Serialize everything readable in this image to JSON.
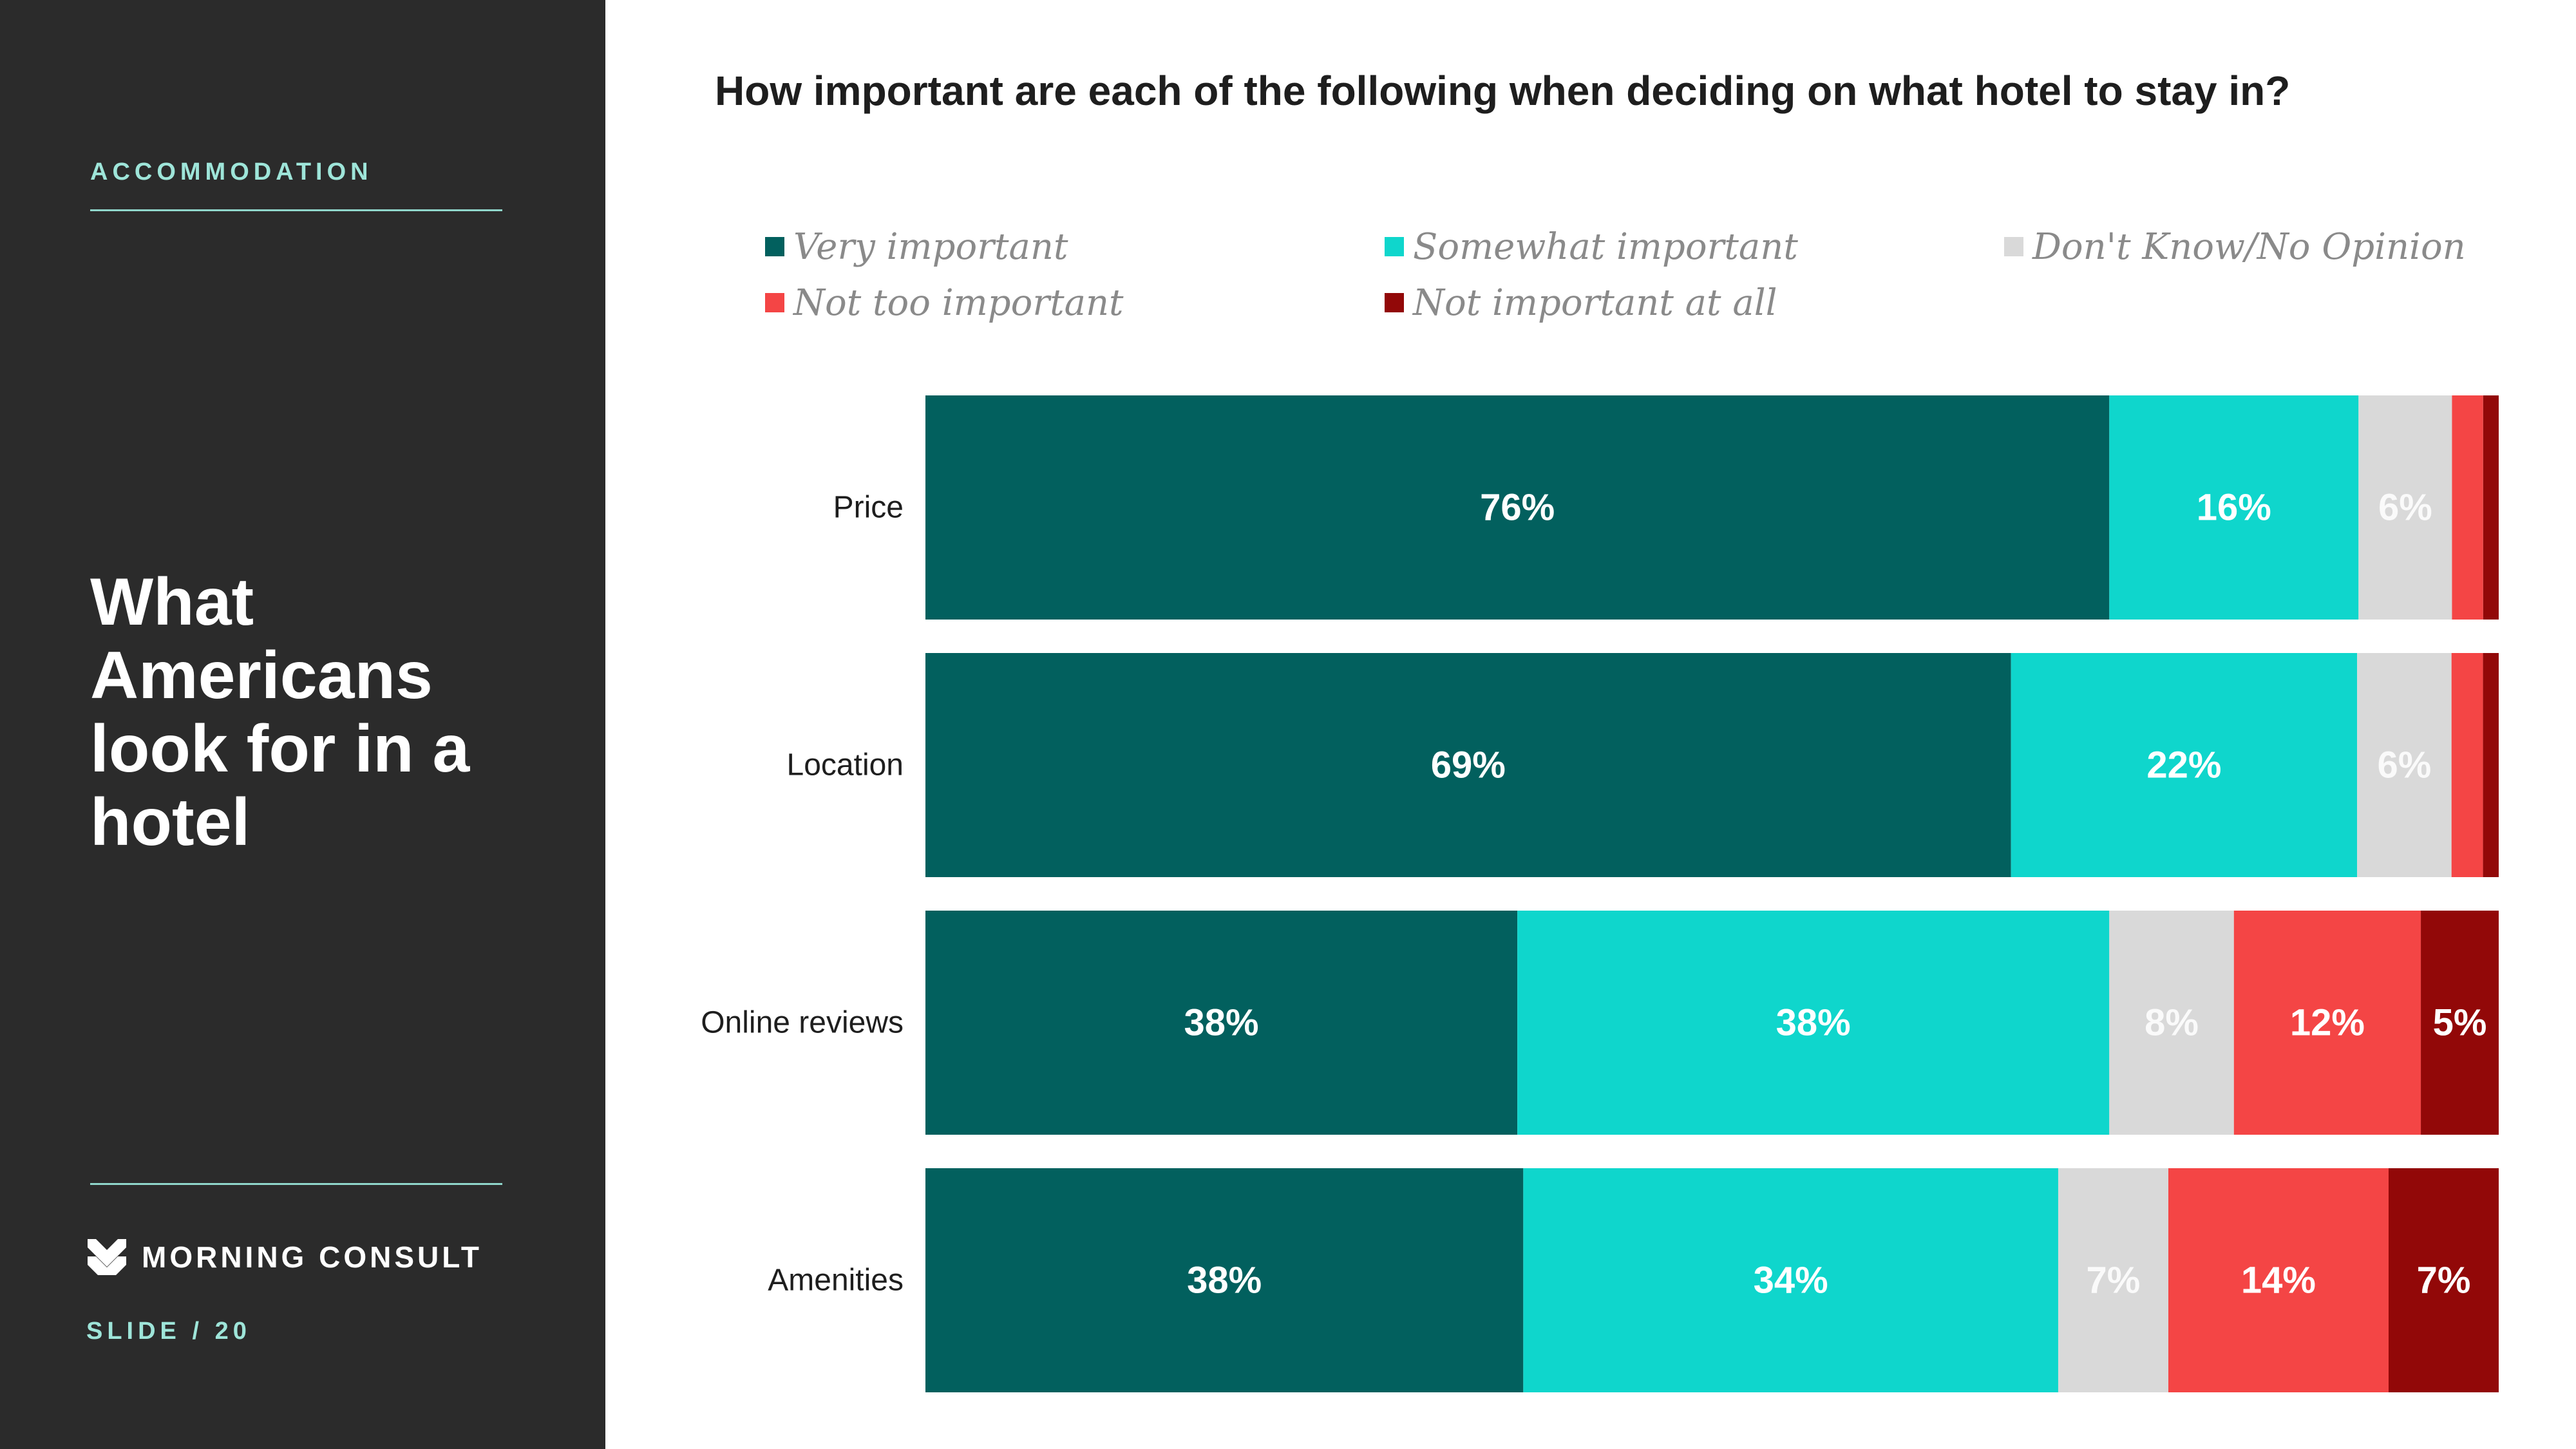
{
  "sidebar": {
    "section_label": "ACCOMMODATION",
    "title": "What Americans look for in a hotel",
    "brand_name": "MORNING CONSULT",
    "slide_number": "SLIDE /  20",
    "logo_icon": "morning-consult-chevron-logo-icon"
  },
  "colors": {
    "sidebar_bg": "#2b2b2b",
    "accent": "#9ee5d9",
    "very_important": "#02605e",
    "somewhat_important": "#0fd6cc",
    "dont_know": "#d9d9d9",
    "not_too_important": "#f44545",
    "not_important_at_all": "#920808"
  },
  "chart_data": {
    "type": "bar",
    "orientation": "horizontal",
    "stacked": true,
    "title": "How important are each of the following when deciding on what hotel to stay in?",
    "categories": [
      "Price",
      "Location",
      "Online reviews",
      "Amenities"
    ],
    "legend_placement": "top",
    "grid": false,
    "xlim": [
      0,
      100
    ],
    "series": [
      {
        "name": "Very important",
        "color": "#02605e",
        "values": [
          76,
          69,
          38,
          38
        ],
        "labels": [
          "76%",
          "69%",
          "38%",
          "38%"
        ]
      },
      {
        "name": "Somewhat important",
        "color": "#0fd6cc",
        "values": [
          16,
          22,
          38,
          34
        ],
        "labels": [
          "16%",
          "22%",
          "38%",
          "34%"
        ]
      },
      {
        "name": "Don't Know/No Opinion",
        "color": "#d9d9d9",
        "values": [
          6,
          6,
          8,
          7
        ],
        "labels": [
          "6%",
          "6%",
          "8%",
          "7%"
        ]
      },
      {
        "name": "Not too important",
        "color": "#f44545",
        "values": [
          2,
          2,
          12,
          14
        ],
        "labels": [
          "",
          "",
          "12%",
          "14%"
        ]
      },
      {
        "name": "Not important at all",
        "color": "#920808",
        "values": [
          1,
          1,
          5,
          7
        ],
        "labels": [
          "",
          "",
          "5%",
          "7%"
        ]
      }
    ]
  }
}
